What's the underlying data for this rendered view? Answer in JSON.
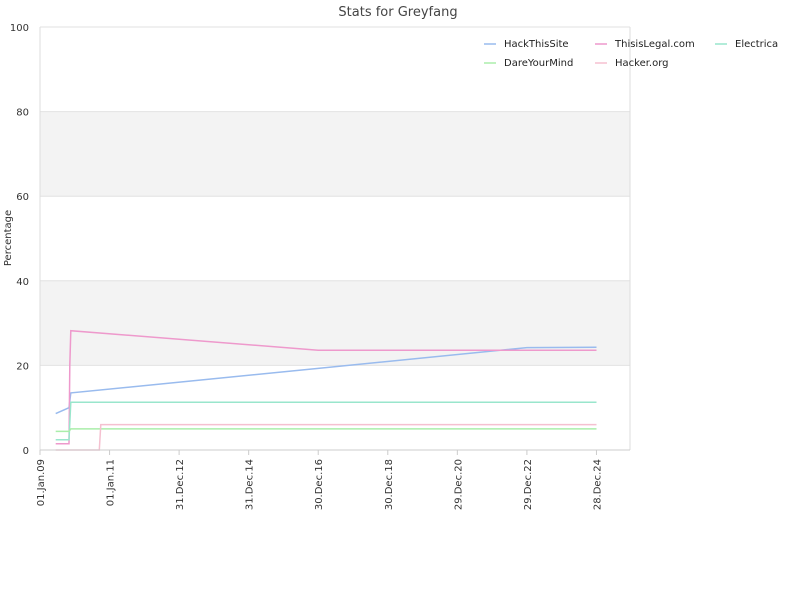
{
  "chart_data": {
    "type": "line",
    "title": "Stats for Greyfang",
    "ylabel": "Percentage",
    "xlabel": "",
    "ylim": [
      0,
      100
    ],
    "yticks": [
      0,
      20,
      40,
      60,
      80,
      100
    ],
    "xlim": [
      "2009-01-01",
      "2025-12-15"
    ],
    "xticks": [
      {
        "date": "2009-01-01",
        "label": "01.Jan.09"
      },
      {
        "date": "2011-01-01",
        "label": "01.Jan.11"
      },
      {
        "date": "2012-12-31",
        "label": "31.Dec.12"
      },
      {
        "date": "2014-12-31",
        "label": "31.Dec.14"
      },
      {
        "date": "2016-12-30",
        "label": "30.Dec.16"
      },
      {
        "date": "2018-12-30",
        "label": "30.Dec.18"
      },
      {
        "date": "2020-12-29",
        "label": "29.Dec.20"
      },
      {
        "date": "2022-12-29",
        "label": "29.Dec.22"
      },
      {
        "date": "2024-12-28",
        "label": "28.Dec.24"
      }
    ],
    "grid": true,
    "alternating_bands": true,
    "legend_position": "top-right",
    "series": [
      {
        "name": "HackThisSite",
        "color": "#99bbee",
        "points": [
          [
            "2009-06-15",
            8.6
          ],
          [
            "2009-11-01",
            10.0
          ],
          [
            "2009-11-20",
            13.5
          ],
          [
            "2016-12-30",
            19.3
          ],
          [
            "2022-12-29",
            24.2
          ],
          [
            "2024-12-28",
            24.3
          ]
        ]
      },
      {
        "name": "ThisisLegal.com",
        "color": "#ee99cc",
        "points": [
          [
            "2009-06-15",
            1.5
          ],
          [
            "2009-11-01",
            1.5
          ],
          [
            "2009-11-10",
            20.0
          ],
          [
            "2009-11-20",
            28.2
          ],
          [
            "2016-12-30",
            23.6
          ],
          [
            "2024-12-28",
            23.6
          ]
        ]
      },
      {
        "name": "Electrica",
        "color": "#99e6cc",
        "points": [
          [
            "2009-06-15",
            2.4
          ],
          [
            "2009-11-01",
            2.4
          ],
          [
            "2009-11-20",
            11.3
          ],
          [
            "2024-12-28",
            11.3
          ]
        ]
      },
      {
        "name": "DareYourMind",
        "color": "#aaeeaa",
        "points": [
          [
            "2009-06-15",
            4.4
          ],
          [
            "2009-11-01",
            4.4
          ],
          [
            "2009-11-20",
            5.0
          ],
          [
            "2024-12-28",
            5.0
          ]
        ]
      },
      {
        "name": "Hacker.org",
        "color": "#f5c0d0",
        "points": [
          [
            "2009-06-15",
            0.0
          ],
          [
            "2010-09-15",
            0.0
          ],
          [
            "2010-10-01",
            6.0
          ],
          [
            "2024-12-28",
            6.0
          ]
        ]
      }
    ]
  }
}
